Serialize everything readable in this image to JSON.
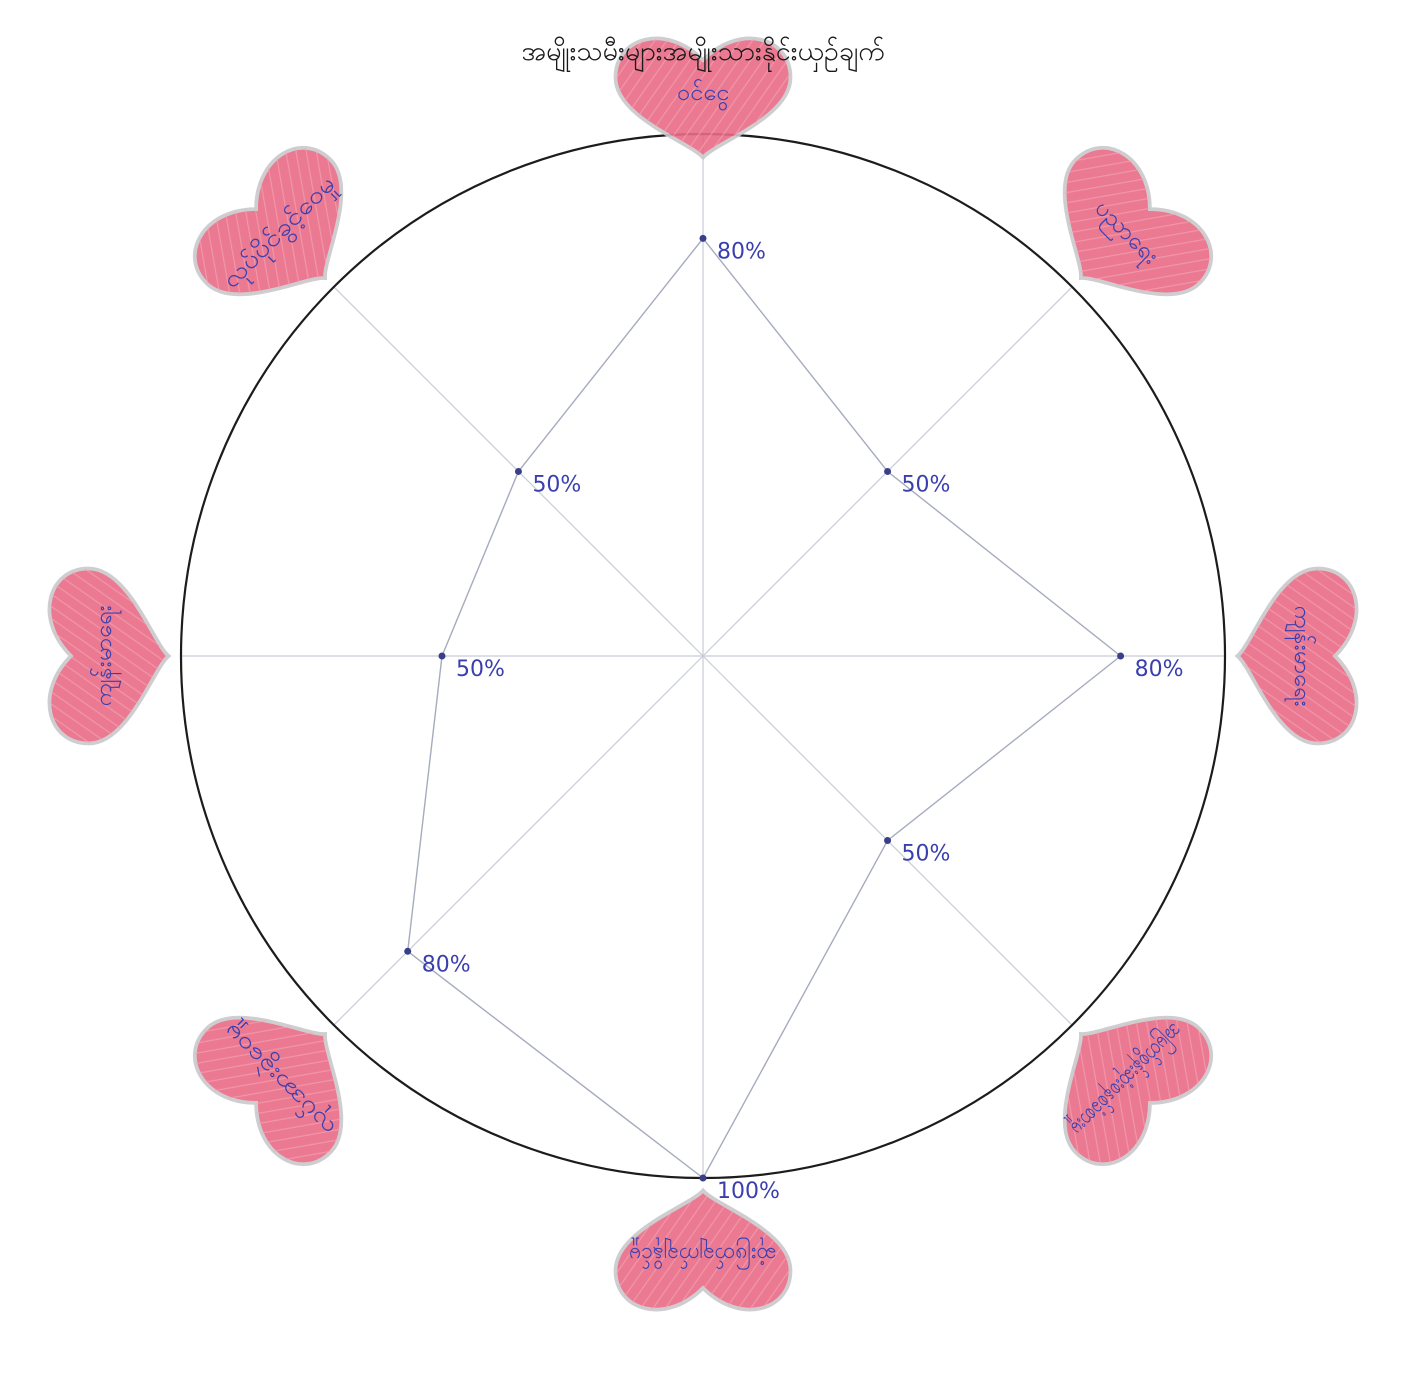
{
  "title": "အမျိုးသမီးများအမျိုးသားနိုင်းယှဉ်ချက်",
  "chart_data": {
    "type": "radar",
    "title": "အမျိုးသမီးများအမျိုးသားနိုင်းယှဉ်ချက်",
    "max": 100,
    "categories": [
      "ဝင်ငွေ",
      "ပညာရေး",
      "ကျန်းမာရေး",
      "အမြတ်စွန်းဆုံးစနစ်ခံစားမှု",
      "ဆုံးဖြတ်ချက်ချနိုင်မှု",
      "လုပ်အားခွဲဝေမှု",
      "ကျန်းမာရေး",
      "လုပ်ပိုင်ခွင့်ဝေမှု"
    ],
    "values": [
      80,
      50,
      80,
      50,
      100,
      80,
      50,
      50
    ],
    "value_labels": [
      "80%",
      "50%",
      "80%",
      "50%",
      "100%",
      "80%",
      "50%",
      "50%"
    ],
    "colors": {
      "heart": "#e86b86",
      "value_text": "#3b3fae",
      "outline": "#1c1c1c"
    }
  }
}
